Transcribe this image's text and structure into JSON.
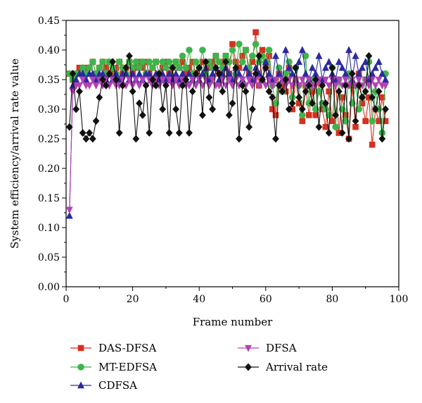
{
  "chart_data": {
    "type": "line",
    "title": "",
    "xlabel": "Frame number",
    "ylabel": "System efficiency/arrival rate value",
    "xlim": [
      0,
      100
    ],
    "ylim": [
      0,
      0.45
    ],
    "xticks": [
      "0",
      "20",
      "40",
      "60",
      "80",
      "100"
    ],
    "yticks": [
      "0.00",
      "0.05",
      "0.10",
      "0.15",
      "0.20",
      "0.25",
      "0.30",
      "0.35",
      "0.40",
      "0.45"
    ],
    "grid": false,
    "legend_position": "bottom",
    "x": [
      1,
      2,
      3,
      4,
      5,
      6,
      7,
      8,
      9,
      10,
      11,
      12,
      13,
      14,
      15,
      16,
      17,
      18,
      19,
      20,
      21,
      22,
      23,
      24,
      25,
      26,
      27,
      28,
      29,
      30,
      31,
      32,
      33,
      34,
      35,
      36,
      37,
      38,
      39,
      40,
      41,
      42,
      43,
      44,
      45,
      46,
      47,
      48,
      49,
      50,
      51,
      52,
      53,
      54,
      55,
      56,
      57,
      58,
      59,
      60,
      61,
      62,
      63,
      64,
      65,
      66,
      67,
      68,
      69,
      70,
      71,
      72,
      73,
      74,
      75,
      76,
      77,
      78,
      79,
      80,
      81,
      82,
      83,
      84,
      85,
      86,
      87,
      88,
      89,
      90,
      91,
      92,
      93,
      94,
      95,
      96
    ],
    "series": [
      {
        "name": "DAS-DFSA",
        "color": "#d6301e",
        "marker": "square",
        "values": [
          0.36,
          0.35,
          0.36,
          0.37,
          0.36,
          0.37,
          0.37,
          0.38,
          0.36,
          0.37,
          0.38,
          0.37,
          0.38,
          0.36,
          0.37,
          0.38,
          0.36,
          0.37,
          0.38,
          0.36,
          0.37,
          0.38,
          0.37,
          0.38,
          0.36,
          0.37,
          0.38,
          0.36,
          0.37,
          0.38,
          0.36,
          0.37,
          0.38,
          0.37,
          0.38,
          0.36,
          0.37,
          0.38,
          0.36,
          0.37,
          0.38,
          0.36,
          0.37,
          0.38,
          0.39,
          0.36,
          0.38,
          0.39,
          0.36,
          0.41,
          0.38,
          0.37,
          0.39,
          0.4,
          0.36,
          0.38,
          0.43,
          0.34,
          0.4,
          0.37,
          0.39,
          0.3,
          0.29,
          0.36,
          0.34,
          0.33,
          0.37,
          0.3,
          0.35,
          0.31,
          0.28,
          0.34,
          0.29,
          0.33,
          0.29,
          0.35,
          0.3,
          0.27,
          0.33,
          0.28,
          0.35,
          0.26,
          0.32,
          0.29,
          0.25,
          0.34,
          0.27,
          0.36,
          0.31,
          0.28,
          0.32,
          0.24,
          0.3,
          0.28,
          0.32,
          0.28
        ]
      },
      {
        "name": "MT-EDFSA",
        "color": "#3cb54a",
        "marker": "circle",
        "values": [
          0.36,
          0.35,
          0.36,
          0.36,
          0.37,
          0.36,
          0.37,
          0.38,
          0.36,
          0.37,
          0.38,
          0.36,
          0.38,
          0.37,
          0.36,
          0.38,
          0.37,
          0.36,
          0.38,
          0.37,
          0.38,
          0.37,
          0.38,
          0.36,
          0.38,
          0.37,
          0.38,
          0.36,
          0.38,
          0.37,
          0.38,
          0.37,
          0.38,
          0.37,
          0.39,
          0.37,
          0.4,
          0.36,
          0.38,
          0.37,
          0.4,
          0.36,
          0.38,
          0.37,
          0.39,
          0.38,
          0.37,
          0.39,
          0.38,
          0.4,
          0.36,
          0.41,
          0.38,
          0.4,
          0.37,
          0.39,
          0.41,
          0.38,
          0.39,
          0.38,
          0.4,
          0.34,
          0.31,
          0.37,
          0.33,
          0.36,
          0.38,
          0.32,
          0.37,
          0.34,
          0.29,
          0.39,
          0.31,
          0.35,
          0.3,
          0.33,
          0.31,
          0.3,
          0.29,
          0.37,
          0.27,
          0.35,
          0.3,
          0.28,
          0.36,
          0.31,
          0.34,
          0.3,
          0.32,
          0.35,
          0.38,
          0.28,
          0.33,
          0.3,
          0.26,
          0.36
        ]
      },
      {
        "name": "CDFSA",
        "color": "#2a2aa0",
        "marker": "triangle-up",
        "values": [
          0.12,
          0.34,
          0.35,
          0.36,
          0.36,
          0.35,
          0.36,
          0.36,
          0.35,
          0.36,
          0.36,
          0.35,
          0.36,
          0.35,
          0.36,
          0.35,
          0.36,
          0.36,
          0.35,
          0.36,
          0.35,
          0.36,
          0.35,
          0.36,
          0.36,
          0.35,
          0.36,
          0.35,
          0.36,
          0.35,
          0.36,
          0.35,
          0.36,
          0.35,
          0.36,
          0.35,
          0.36,
          0.35,
          0.36,
          0.35,
          0.36,
          0.37,
          0.35,
          0.36,
          0.37,
          0.35,
          0.36,
          0.37,
          0.36,
          0.35,
          0.37,
          0.36,
          0.35,
          0.37,
          0.36,
          0.35,
          0.37,
          0.36,
          0.35,
          0.38,
          0.36,
          0.35,
          0.39,
          0.36,
          0.35,
          0.4,
          0.37,
          0.36,
          0.35,
          0.38,
          0.4,
          0.36,
          0.35,
          0.37,
          0.36,
          0.39,
          0.35,
          0.37,
          0.38,
          0.36,
          0.35,
          0.38,
          0.37,
          0.36,
          0.4,
          0.35,
          0.39,
          0.36,
          0.37,
          0.38,
          0.35,
          0.36,
          0.37,
          0.38,
          0.36,
          0.35
        ]
      },
      {
        "name": "DFSA",
        "color": "#b440b4",
        "marker": "triangle-down",
        "values": [
          0.13,
          0.33,
          0.34,
          0.34,
          0.35,
          0.34,
          0.34,
          0.35,
          0.34,
          0.35,
          0.34,
          0.35,
          0.34,
          0.35,
          0.34,
          0.34,
          0.35,
          0.34,
          0.35,
          0.34,
          0.35,
          0.34,
          0.35,
          0.34,
          0.35,
          0.34,
          0.35,
          0.34,
          0.35,
          0.34,
          0.35,
          0.34,
          0.35,
          0.34,
          0.35,
          0.34,
          0.34,
          0.35,
          0.34,
          0.35,
          0.34,
          0.35,
          0.34,
          0.35,
          0.34,
          0.34,
          0.35,
          0.34,
          0.35,
          0.34,
          0.35,
          0.34,
          0.35,
          0.34,
          0.35,
          0.34,
          0.35,
          0.34,
          0.35,
          0.34,
          0.35,
          0.34,
          0.35,
          0.34,
          0.35,
          0.34,
          0.35,
          0.34,
          0.35,
          0.34,
          0.35,
          0.34,
          0.35,
          0.34,
          0.34,
          0.35,
          0.34,
          0.35,
          0.34,
          0.35,
          0.34,
          0.35,
          0.34,
          0.35,
          0.34,
          0.35,
          0.34,
          0.35,
          0.34,
          0.35,
          0.34,
          0.35,
          0.34,
          0.35,
          0.34,
          0.34
        ]
      },
      {
        "name": "Arrival rate",
        "color": "#111111",
        "marker": "diamond",
        "values": [
          0.27,
          0.36,
          0.3,
          0.33,
          0.26,
          0.25,
          0.26,
          0.25,
          0.28,
          0.32,
          0.35,
          0.34,
          0.36,
          0.38,
          0.35,
          0.26,
          0.34,
          0.37,
          0.39,
          0.33,
          0.25,
          0.31,
          0.29,
          0.34,
          0.26,
          0.35,
          0.34,
          0.36,
          0.3,
          0.34,
          0.26,
          0.37,
          0.3,
          0.26,
          0.34,
          0.35,
          0.26,
          0.33,
          0.36,
          0.37,
          0.29,
          0.38,
          0.32,
          0.3,
          0.37,
          0.36,
          0.33,
          0.38,
          0.29,
          0.31,
          0.37,
          0.25,
          0.34,
          0.33,
          0.27,
          0.3,
          0.36,
          0.39,
          0.35,
          0.37,
          0.33,
          0.32,
          0.25,
          0.34,
          0.33,
          0.35,
          0.3,
          0.31,
          0.37,
          0.32,
          0.3,
          0.33,
          0.34,
          0.31,
          0.35,
          0.27,
          0.34,
          0.31,
          0.26,
          0.37,
          0.29,
          0.33,
          0.26,
          0.34,
          0.25,
          0.36,
          0.28,
          0.34,
          0.32,
          0.33,
          0.39,
          0.32,
          0.3,
          0.33,
          0.25,
          0.3
        ]
      }
    ]
  }
}
